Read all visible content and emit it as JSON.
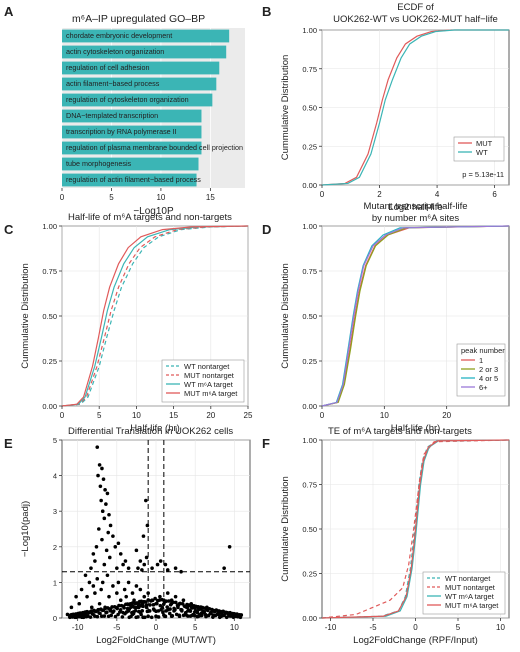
{
  "chart_data": [
    {
      "panel": "A",
      "type": "bar",
      "title": "m⁶A–IP upregulated GO–BP",
      "xlabel": "−Log10P",
      "xlim": [
        0,
        18.5
      ],
      "xticks": [
        "0",
        "5",
        "10",
        "15"
      ],
      "color": "#3bb5b5",
      "categories": [
        "chordate embryonic development",
        "actin cytoskeleton organization",
        "regulation of cell adhesion",
        "actin filament−based process",
        "regulation of cytoskeleton organization",
        "DNA−templated transcription",
        "transcription by RNA polymerase II",
        "regulation of plasma membrane bounded cell projection",
        "tube morphogenesis",
        "regulation of actin filament−based process"
      ],
      "values": [
        16.9,
        16.6,
        15.9,
        15.6,
        15.2,
        14.1,
        14.1,
        14.1,
        13.8,
        13.6
      ]
    },
    {
      "panel": "B",
      "type": "line",
      "title": "ECDF of UOK262-WT vs UOK262-MUT half−life",
      "title_lines": [
        "ECDF of",
        "UOK262-WT vs UOK262-MUT half−life"
      ],
      "xlabel": "Log2 half-life",
      "ylabel": "Cummulative Distribution",
      "xlim": [
        0,
        6.5
      ],
      "ylim": [
        0,
        1
      ],
      "xticks": [
        "0",
        "2",
        "4",
        "6"
      ],
      "yticks": [
        "0.00",
        "0.25",
        "0.50",
        "0.75",
        "1.00"
      ],
      "legend": [
        "MUT",
        "WT"
      ],
      "annotation": "p = 5.13e-11",
      "series": [
        {
          "name": "MUT",
          "color": "#e05a5a",
          "x": [
            0.0,
            0.8,
            1.2,
            1.6,
            1.9,
            2.1,
            2.3,
            2.6,
            2.9,
            3.3,
            3.8,
            4.5,
            6.5
          ],
          "y": [
            0,
            0.01,
            0.05,
            0.2,
            0.4,
            0.55,
            0.68,
            0.82,
            0.91,
            0.96,
            0.99,
            1.0,
            1.0
          ]
        },
        {
          "name": "WT",
          "color": "#3bb5b5",
          "x": [
            0.0,
            0.9,
            1.3,
            1.7,
            2.0,
            2.2,
            2.45,
            2.75,
            3.05,
            3.45,
            3.95,
            4.6,
            6.5
          ],
          "y": [
            0,
            0.01,
            0.05,
            0.2,
            0.4,
            0.55,
            0.68,
            0.82,
            0.91,
            0.96,
            0.99,
            1.0,
            1.0
          ]
        }
      ]
    },
    {
      "panel": "C",
      "type": "line",
      "title": "Half-life of m⁶A targets and non-targets",
      "xlabel": "Half-life (hr)",
      "ylabel": "Cummulative Distribution",
      "xlim": [
        0,
        25
      ],
      "ylim": [
        0,
        1
      ],
      "xticks": [
        "0",
        "5",
        "10",
        "15",
        "20",
        "25"
      ],
      "yticks": [
        "0.00",
        "0.25",
        "0.50",
        "0.75",
        "1.00"
      ],
      "legend": [
        "WT nontarget",
        "MUT nontarget",
        "WT m⁶A target",
        "MUT m⁶A target"
      ],
      "series": [
        {
          "name": "WT nontarget",
          "color": "#3bb5b5",
          "dash": true,
          "x": [
            0,
            2.5,
            3.5,
            5,
            6,
            7,
            8,
            9.5,
            11,
            13,
            16,
            20,
            25
          ],
          "y": [
            0,
            0.01,
            0.05,
            0.22,
            0.38,
            0.53,
            0.66,
            0.79,
            0.88,
            0.94,
            0.98,
            0.995,
            1
          ]
        },
        {
          "name": "MUT nontarget",
          "color": "#e05a5a",
          "dash": true,
          "x": [
            0,
            2.3,
            3.3,
            4.7,
            5.7,
            6.6,
            7.6,
            9,
            10.5,
            12.5,
            15.5,
            19.5,
            25
          ],
          "y": [
            0,
            0.01,
            0.05,
            0.22,
            0.38,
            0.53,
            0.66,
            0.79,
            0.88,
            0.94,
            0.98,
            0.995,
            1
          ]
        },
        {
          "name": "WT m⁶A target",
          "color": "#3bb5b5",
          "dash": false,
          "x": [
            0,
            2.2,
            3.1,
            4.4,
            5.3,
            6.1,
            7,
            8.3,
            9.7,
            11.5,
            14.5,
            18.5,
            25
          ],
          "y": [
            0,
            0.01,
            0.05,
            0.22,
            0.38,
            0.53,
            0.66,
            0.79,
            0.88,
            0.94,
            0.98,
            0.995,
            1
          ]
        },
        {
          "name": "MUT m⁶A target",
          "color": "#e05a5a",
          "dash": false,
          "x": [
            0,
            2,
            2.9,
            4.1,
            4.9,
            5.6,
            6.4,
            7.6,
            8.9,
            10.6,
            13.5,
            17.5,
            25
          ],
          "y": [
            0,
            0.01,
            0.05,
            0.22,
            0.38,
            0.53,
            0.66,
            0.79,
            0.88,
            0.94,
            0.98,
            0.995,
            1
          ]
        }
      ]
    },
    {
      "panel": "D",
      "type": "line",
      "title": "Mutant transcript half-life by number m⁶A sites",
      "title_lines": [
        "Mutant transcript half-life",
        "by number m⁶A sites"
      ],
      "xlabel": "Half-life (hr)",
      "ylabel": "Cummulative Distribution",
      "xlim": [
        0,
        30
      ],
      "ylim": [
        0,
        1
      ],
      "xticks": [
        "0",
        "10",
        "20"
      ],
      "yticks": [
        "0.00",
        "0.25",
        "0.50",
        "0.75",
        "1.00"
      ],
      "legend_title": "peak number",
      "legend": [
        "1",
        "2 or 3",
        "4 or 5",
        "6+"
      ],
      "series": [
        {
          "name": "1",
          "color": "#e05a5a",
          "x": [
            0,
            2.5,
            3.5,
            4.5,
            5.3,
            6,
            7,
            8.5,
            10.5,
            14,
            30
          ],
          "y": [
            0,
            0.02,
            0.12,
            0.32,
            0.5,
            0.64,
            0.78,
            0.89,
            0.95,
            0.99,
            1
          ]
        },
        {
          "name": "2 or 3",
          "color": "#8fa11e",
          "x": [
            0,
            2.6,
            3.6,
            4.6,
            5.4,
            6.1,
            7.1,
            8.6,
            10.6,
            13.5,
            30
          ],
          "y": [
            0,
            0.02,
            0.12,
            0.32,
            0.5,
            0.64,
            0.78,
            0.89,
            0.95,
            0.99,
            1
          ]
        },
        {
          "name": "4 or 5",
          "color": "#26b3c4",
          "x": [
            0,
            2.3,
            3.3,
            4.2,
            5.0,
            5.7,
            6.6,
            8,
            9.8,
            12.5,
            30
          ],
          "y": [
            0,
            0.02,
            0.12,
            0.32,
            0.5,
            0.64,
            0.78,
            0.89,
            0.95,
            0.99,
            1
          ]
        },
        {
          "name": "6+",
          "color": "#9b78d8",
          "x": [
            0,
            2.4,
            3.4,
            4.3,
            5.1,
            5.8,
            6.7,
            8.2,
            10.2,
            13,
            30
          ],
          "y": [
            0,
            0.02,
            0.12,
            0.32,
            0.5,
            0.64,
            0.78,
            0.89,
            0.95,
            0.99,
            1
          ]
        }
      ]
    },
    {
      "panel": "E",
      "type": "scatter",
      "title": "Differential Translation in UOK262 cells",
      "xlabel": "Log2FoldChange (MUT/WT)",
      "ylabel": "−Log10(padj)",
      "xlim": [
        -12,
        12
      ],
      "ylim": [
        0,
        5
      ],
      "xticks": [
        "-10",
        "-5",
        "0",
        "5",
        "10"
      ],
      "yticks": [
        "0",
        "1",
        "2",
        "3",
        "4",
        "5"
      ],
      "vlines": [
        -1,
        1
      ],
      "hline": 1.3,
      "points": [
        [
          -7.5,
          4.8
        ],
        [
          -7.2,
          4.3
        ],
        [
          -6.9,
          4.2
        ],
        [
          -7.4,
          4.0
        ],
        [
          -6.7,
          3.9
        ],
        [
          -7.1,
          3.7
        ],
        [
          -6.5,
          3.6
        ],
        [
          -6.2,
          3.5
        ],
        [
          -7.0,
          3.3
        ],
        [
          -6.4,
          3.2
        ],
        [
          -6.8,
          3.0
        ],
        [
          -6.0,
          2.9
        ],
        [
          -6.6,
          2.8
        ],
        [
          -5.8,
          2.6
        ],
        [
          -7.3,
          2.5
        ],
        [
          -6.1,
          2.4
        ],
        [
          -5.5,
          2.3
        ],
        [
          -6.9,
          2.2
        ],
        [
          -4.8,
          2.1
        ],
        [
          -7.6,
          2.0
        ],
        [
          -5.2,
          2.0
        ],
        [
          -6.3,
          1.9
        ],
        [
          -8.0,
          1.8
        ],
        [
          -4.5,
          1.8
        ],
        [
          -5.9,
          1.7
        ],
        [
          -7.8,
          1.6
        ],
        [
          -3.9,
          1.6
        ],
        [
          -6.6,
          1.5
        ],
        [
          -4.2,
          1.5
        ],
        [
          -8.3,
          1.4
        ],
        [
          -5.0,
          1.4
        ],
        [
          -3.5,
          1.4
        ],
        [
          -2.5,
          1.9
        ],
        [
          -2.0,
          1.6
        ],
        [
          -1.5,
          1.5
        ],
        [
          -1.3,
          3.3
        ],
        [
          -1.1,
          2.6
        ],
        [
          -1.6,
          2.3
        ],
        [
          -1.2,
          1.7
        ],
        [
          -2.3,
          1.4
        ],
        [
          -1.8,
          1.35
        ],
        [
          0.2,
          1.5
        ],
        [
          -0.5,
          1.4
        ],
        [
          0.6,
          1.6
        ],
        [
          1.2,
          1.5
        ],
        [
          1.5,
          1.35
        ],
        [
          2.5,
          1.4
        ],
        [
          9.4,
          2.0
        ],
        [
          8.7,
          1.4
        ],
        [
          3.2,
          1.3
        ],
        [
          -9.0,
          1.2
        ],
        [
          -8.5,
          1.0
        ],
        [
          -9.5,
          0.8
        ],
        [
          -10.2,
          0.6
        ],
        [
          -10.8,
          0.3
        ],
        [
          -11.3,
          0.1
        ],
        [
          -8.0,
          0.9
        ],
        [
          -7.5,
          1.1
        ],
        [
          -6.8,
          1.0
        ],
        [
          -6.2,
          1.2
        ],
        [
          -5.5,
          0.9
        ],
        [
          -4.8,
          1.0
        ],
        [
          -4.0,
          0.8
        ],
        [
          -3.5,
          1.0
        ],
        [
          -3.0,
          0.7
        ],
        [
          -2.5,
          0.9
        ],
        [
          -2.0,
          0.8
        ],
        [
          -1.5,
          0.6
        ],
        [
          -1.0,
          0.7
        ],
        [
          -0.5,
          0.5
        ],
        [
          0.0,
          0.4
        ],
        [
          0.5,
          0.6
        ],
        [
          1.0,
          0.5
        ],
        [
          1.5,
          0.7
        ],
        [
          2.0,
          0.5
        ],
        [
          2.5,
          0.6
        ],
        [
          3.0,
          0.4
        ],
        [
          3.5,
          0.5
        ],
        [
          4.0,
          0.3
        ],
        [
          4.5,
          0.4
        ],
        [
          5.0,
          0.3
        ],
        [
          5.5,
          0.25
        ],
        [
          6.0,
          0.2
        ],
        [
          6.5,
          0.3
        ],
        [
          7.0,
          0.15
        ],
        [
          7.5,
          0.2
        ],
        [
          8.0,
          0.1
        ],
        [
          9.0,
          0.15
        ],
        [
          10.0,
          0.1
        ],
        [
          -9.8,
          0.4
        ],
        [
          -8.8,
          0.6
        ],
        [
          -7.8,
          0.7
        ],
        [
          -7.0,
          0.8
        ],
        [
          -6.0,
          0.6
        ],
        [
          -5.0,
          0.7
        ],
        [
          -4.5,
          0.5
        ],
        [
          -3.8,
          0.6
        ],
        [
          -3.2,
          0.4
        ],
        [
          -2.8,
          0.5
        ],
        [
          -2.2,
          0.3
        ],
        [
          -1.7,
          0.4
        ],
        [
          -1.2,
          0.3
        ],
        [
          -0.8,
          0.2
        ],
        [
          -0.3,
          0.25
        ],
        [
          0.3,
          0.2
        ],
        [
          0.8,
          0.3
        ],
        [
          1.3,
          0.2
        ],
        [
          1.8,
          0.25
        ],
        [
          2.3,
          0.2
        ],
        [
          2.8,
          0.3
        ],
        [
          3.3,
          0.2
        ],
        [
          3.8,
          0.15
        ],
        [
          4.3,
          0.2
        ],
        [
          4.8,
          0.1
        ],
        [
          5.3,
          0.15
        ],
        [
          6.3,
          0.1
        ],
        [
          7.3,
          0.08
        ],
        [
          8.3,
          0.05
        ],
        [
          -6.5,
          0.3
        ],
        [
          -5.8,
          0.2
        ],
        [
          -4.2,
          0.15
        ],
        [
          -3.0,
          0.1
        ],
        [
          -1.9,
          0.1
        ],
        [
          -1.0,
          0.05
        ],
        [
          0.0,
          0.05
        ],
        [
          1.0,
          0.08
        ],
        [
          2.0,
          0.05
        ],
        [
          3.0,
          0.05
        ],
        [
          -7.2,
          0.4
        ],
        [
          -8.2,
          0.3
        ]
      ]
    },
    {
      "panel": "F",
      "type": "line",
      "title": "TE of m⁶A targets and non-targets",
      "xlabel": "Log2FoldChange (RPF/Input)",
      "ylabel": "Cummulative Distribution",
      "xlim": [
        -11,
        11
      ],
      "ylim": [
        0,
        1
      ],
      "xticks": [
        "-10",
        "-5",
        "0",
        "5",
        "10"
      ],
      "yticks": [
        "0.00",
        "0.25",
        "0.50",
        "0.75",
        "1.00"
      ],
      "legend": [
        "WT nontarget",
        "MUT nontarget",
        "WT m⁶A target",
        "MUT m⁶A target"
      ],
      "series": [
        {
          "name": "WT nontarget",
          "color": "#3bb5b5",
          "dash": true,
          "x": [
            -11,
            -4,
            -2,
            -1.2,
            -0.6,
            -0.2,
            0.1,
            0.4,
            0.8,
            1.4,
            2.5,
            11
          ],
          "y": [
            0,
            0.01,
            0.04,
            0.12,
            0.28,
            0.45,
            0.6,
            0.75,
            0.88,
            0.96,
            0.995,
            1
          ]
        },
        {
          "name": "MUT nontarget",
          "color": "#e05a5a",
          "dash": true,
          "x": [
            -11,
            -7,
            -5,
            -3,
            -1.5,
            -0.8,
            -0.3,
            0.1,
            0.5,
            1.0,
            2.2,
            11
          ],
          "y": [
            0,
            0.02,
            0.06,
            0.1,
            0.17,
            0.3,
            0.47,
            0.62,
            0.78,
            0.92,
            0.99,
            1
          ]
        },
        {
          "name": "WT m⁶A target",
          "color": "#3bb5b5",
          "dash": false,
          "x": [
            -11,
            -3.5,
            -1.8,
            -1.0,
            -0.4,
            0.0,
            0.3,
            0.6,
            1.0,
            1.6,
            2.7,
            11
          ],
          "y": [
            0,
            0.01,
            0.04,
            0.12,
            0.28,
            0.45,
            0.6,
            0.75,
            0.88,
            0.96,
            0.995,
            1
          ]
        },
        {
          "name": "MUT m⁶A target",
          "color": "#e05a5a",
          "dash": false,
          "x": [
            -11,
            -3.8,
            -2.0,
            -1.1,
            -0.5,
            -0.1,
            0.2,
            0.5,
            0.9,
            1.5,
            2.6,
            11
          ],
          "y": [
            0,
            0.01,
            0.04,
            0.12,
            0.28,
            0.45,
            0.6,
            0.75,
            0.88,
            0.96,
            0.995,
            1
          ]
        }
      ]
    }
  ],
  "panel_labels": [
    "A",
    "B",
    "C",
    "D",
    "E",
    "F"
  ]
}
